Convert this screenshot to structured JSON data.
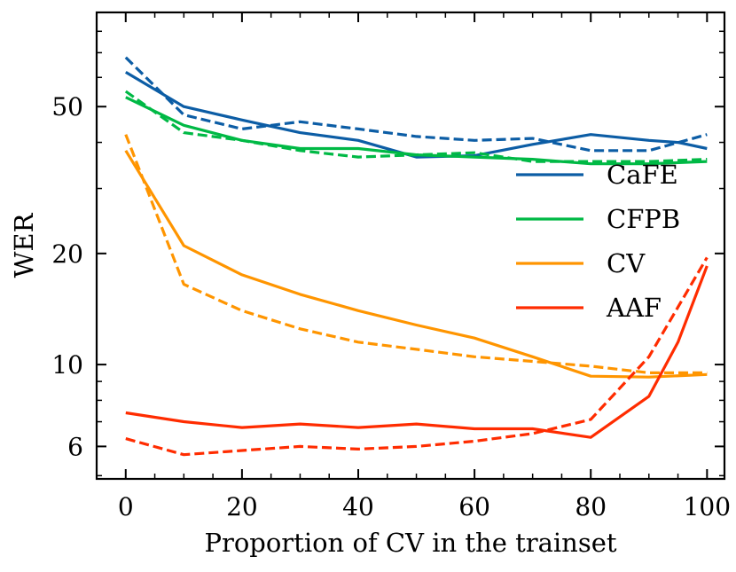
{
  "chart_data": {
    "type": "line",
    "title": "",
    "xlabel": "Proportion of CV in the trainset",
    "ylabel": "WER",
    "xlim": [
      -5,
      103
    ],
    "ylim": [
      4.9,
      90
    ],
    "y_scale": "log",
    "grid": false,
    "legend": {
      "placement": "center-right"
    },
    "x_ticks": [
      0,
      20,
      40,
      60,
      80,
      100
    ],
    "x_tick_labels": [
      "0",
      "20",
      "40",
      "60",
      "80",
      "100"
    ],
    "y_ticks": [
      6,
      10,
      20,
      50
    ],
    "y_tick_labels": [
      "6",
      "10",
      "20",
      "50"
    ],
    "series": [
      {
        "name": "CaFE",
        "color": "#0C5DA5",
        "style": "solid",
        "x": [
          0,
          10,
          20,
          30,
          40,
          50,
          60,
          70,
          80,
          90,
          95,
          100
        ],
        "y": [
          62,
          50,
          46,
          42.5,
          40.5,
          36.5,
          36.8,
          39.5,
          42,
          40.5,
          40,
          38.5
        ]
      },
      {
        "name": "CaFE",
        "color": "#0C5DA5",
        "style": "dashed",
        "x": [
          0,
          10,
          20,
          30,
          40,
          50,
          60,
          70,
          80,
          90,
          100
        ],
        "y": [
          68,
          47.5,
          43.5,
          45.5,
          43.5,
          41.5,
          40.5,
          41,
          38,
          38,
          42
        ]
      },
      {
        "name": "CFPB",
        "color": "#00B945",
        "style": "solid",
        "x": [
          0,
          10,
          20,
          30,
          40,
          50,
          60,
          70,
          80,
          90,
          100
        ],
        "y": [
          53,
          44.5,
          40.5,
          38.5,
          38.5,
          37,
          36.5,
          36,
          35,
          35,
          35.5
        ]
      },
      {
        "name": "CFPB",
        "color": "#00B945",
        "style": "dashed",
        "x": [
          0,
          10,
          20,
          30,
          40,
          50,
          60,
          70,
          80,
          90,
          100
        ],
        "y": [
          55,
          42.5,
          40.5,
          38,
          36.5,
          37,
          37.5,
          35.5,
          35.5,
          35.5,
          36
        ]
      },
      {
        "name": "CV",
        "color": "#FF9500",
        "style": "solid",
        "x": [
          0,
          10,
          20,
          30,
          40,
          50,
          60,
          70,
          80,
          90,
          100
        ],
        "y": [
          38,
          21,
          17.5,
          15.5,
          14,
          12.8,
          11.8,
          10.5,
          9.3,
          9.25,
          9.4
        ]
      },
      {
        "name": "CV",
        "color": "#FF9500",
        "style": "dashed",
        "x": [
          0,
          10,
          20,
          30,
          40,
          50,
          60,
          70,
          80,
          90,
          100
        ],
        "y": [
          42,
          16.5,
          14,
          12.5,
          11.5,
          11,
          10.5,
          10.2,
          9.9,
          9.5,
          9.5
        ]
      },
      {
        "name": "AAF",
        "color": "#FF2C00",
        "style": "solid",
        "x": [
          0,
          10,
          20,
          30,
          40,
          50,
          60,
          70,
          80,
          90,
          95,
          100
        ],
        "y": [
          7.4,
          7.0,
          6.75,
          6.9,
          6.75,
          6.9,
          6.7,
          6.7,
          6.35,
          8.2,
          11.5,
          18.5
        ]
      },
      {
        "name": "AAF",
        "color": "#FF2C00",
        "style": "dashed",
        "x": [
          0,
          10,
          20,
          30,
          40,
          50,
          60,
          70,
          80,
          90,
          100
        ],
        "y": [
          6.3,
          5.7,
          5.85,
          6.0,
          5.9,
          6.0,
          6.2,
          6.5,
          7.1,
          10.5,
          19.5
        ]
      }
    ]
  }
}
